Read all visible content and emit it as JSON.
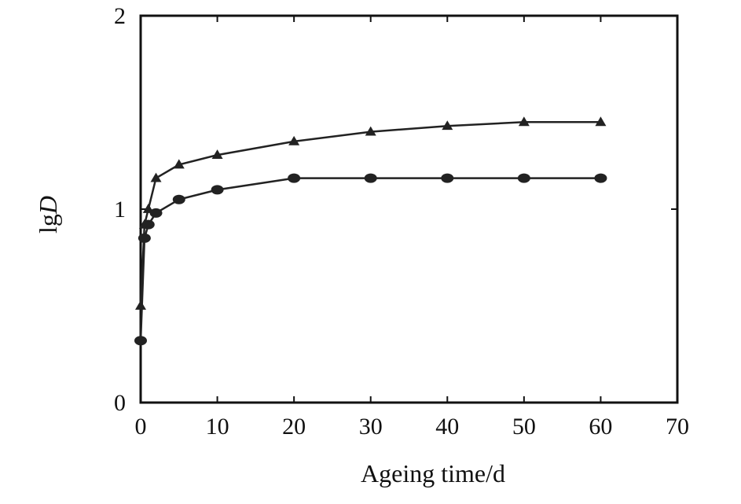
{
  "chart_data": {
    "type": "line",
    "title": "",
    "xlabel": "Ageing time/d",
    "ylabel_prefix": "lg",
    "ylabel_var": "D",
    "xlim": [
      0,
      70
    ],
    "ylim": [
      0,
      2
    ],
    "xticks": [
      0,
      10,
      20,
      30,
      40,
      50,
      60,
      70
    ],
    "yticks": [
      0,
      1,
      2
    ],
    "grid": false,
    "legend": "none",
    "series": [
      {
        "marker": "triangle",
        "color": "#222222",
        "x": [
          0,
          0.5,
          1,
          2,
          5,
          10,
          20,
          30,
          40,
          50,
          60
        ],
        "y": [
          0.5,
          0.92,
          1.0,
          1.16,
          1.23,
          1.28,
          1.35,
          1.4,
          1.43,
          1.45,
          1.45
        ]
      },
      {
        "marker": "circle",
        "color": "#222222",
        "x": [
          0,
          0.5,
          1,
          2,
          5,
          10,
          20,
          30,
          40,
          50,
          60
        ],
        "y": [
          0.32,
          0.85,
          0.92,
          0.98,
          1.05,
          1.1,
          1.16,
          1.16,
          1.16,
          1.16,
          1.16
        ]
      }
    ]
  }
}
